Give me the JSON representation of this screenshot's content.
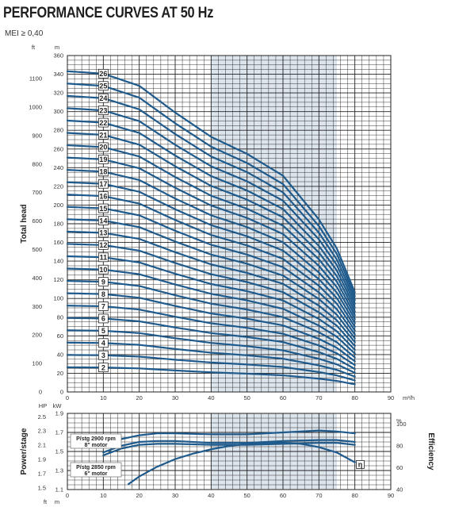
{
  "title": "PERFORMANCE CURVES AT 50 Hz",
  "subtitle": "MEI ≥ 0,40",
  "colors": {
    "curve": "#1e5a8c",
    "highlight": "#dce4ec",
    "grid": "#222222"
  },
  "chart_data": [
    {
      "type": "line",
      "ylabel": "Total head",
      "y_unit_left": "ft",
      "y_unit_right": "m",
      "x_unit": "m³/h",
      "xlim": [
        0,
        90
      ],
      "ylim_m": [
        0,
        360
      ],
      "ylim_ft": [
        0,
        1150
      ],
      "x_ticks": [
        "0",
        "10",
        "20",
        "30",
        "40",
        "50",
        "60",
        "70",
        "80",
        "90"
      ],
      "y_ticks_m": [
        "0",
        "20",
        "40",
        "60",
        "80",
        "100",
        "120",
        "140",
        "160",
        "180",
        "200",
        "220",
        "240",
        "260",
        "280",
        "300",
        "320",
        "340",
        "360"
      ],
      "y_ticks_ft": [
        "0",
        "100",
        "200",
        "300",
        "400",
        "500",
        "600",
        "700",
        "800",
        "900",
        "1000",
        "1100"
      ],
      "highlight_range_x": [
        40,
        75
      ],
      "grid": true,
      "stages": [
        "2",
        "3",
        "4",
        "5",
        "6",
        "7",
        "8",
        "9",
        "10",
        "11",
        "12",
        "13",
        "14",
        "15",
        "16",
        "17",
        "18",
        "19",
        "20",
        "21",
        "22",
        "23",
        "24",
        "25",
        "26"
      ],
      "head_per_stage_m": {
        "x": [
          0,
          10,
          20,
          30,
          40,
          50,
          60,
          70,
          75,
          80
        ],
        "y": [
          13.2,
          13.1,
          12.6,
          11.5,
          10.5,
          9.8,
          8.9,
          7.1,
          5.9,
          4.1
        ]
      }
    },
    {
      "type": "line",
      "ylabel_left": "Power/stage",
      "ylabel_right": "Efficiency",
      "y_unit_left_hp": "HP",
      "y_unit_left_kw": "kW",
      "y_unit_right": "%",
      "x_axis_labels": [
        "ft",
        "m"
      ],
      "xlim": [
        0,
        90
      ],
      "ylim_kw": [
        1.1,
        1.9
      ],
      "ylim_eff": [
        40,
        110
      ],
      "y_ticks_kw": [
        "1.1",
        "1.3",
        "1.5",
        "1.7",
        "1.9"
      ],
      "y_ticks_hp": [
        "1.5",
        "1.7",
        "1.9",
        "2.1",
        "2.3",
        "2.5"
      ],
      "y_ticks_eff": [
        "40",
        "60",
        "80",
        "100"
      ],
      "eff_extra_label": "%",
      "highlight_range_x": [
        40,
        75
      ],
      "grid": true,
      "annotations": [
        {
          "line1": "P/stg 2900 rpm",
          "line2": "8\" motor"
        },
        {
          "line1": "P/stg 2850 rpm",
          "line2": "6\" motor"
        }
      ],
      "marker_label": "η",
      "series": [
        {
          "x": [
            10,
            15,
            20,
            25,
            30,
            40,
            50,
            60,
            65,
            70,
            75,
            80
          ],
          "y": [
            1.56,
            1.63,
            1.67,
            1.69,
            1.69,
            1.68,
            1.68,
            1.7,
            1.71,
            1.72,
            1.71,
            1.69
          ]
        },
        {
          "x": [
            10,
            15,
            20,
            25,
            30,
            40,
            50,
            60,
            70,
            75,
            80
          ],
          "y": [
            1.49,
            1.56,
            1.6,
            1.61,
            1.61,
            1.59,
            1.59,
            1.61,
            1.62,
            1.62,
            1.6
          ]
        },
        {
          "x": [
            10,
            15,
            20,
            25,
            30,
            40,
            50,
            60,
            70,
            75,
            80
          ],
          "y": [
            1.46,
            1.53,
            1.57,
            1.58,
            1.58,
            1.57,
            1.57,
            1.58,
            1.59,
            1.59,
            1.57
          ]
        },
        {
          "x": [
            17,
            20,
            25,
            30,
            35,
            40,
            45,
            50,
            55,
            60,
            65,
            70,
            75,
            80
          ],
          "y": [
            45,
            52,
            61,
            68,
            73,
            77,
            80,
            82,
            83,
            83,
            82,
            79,
            74,
            65
          ]
        }
      ]
    }
  ]
}
